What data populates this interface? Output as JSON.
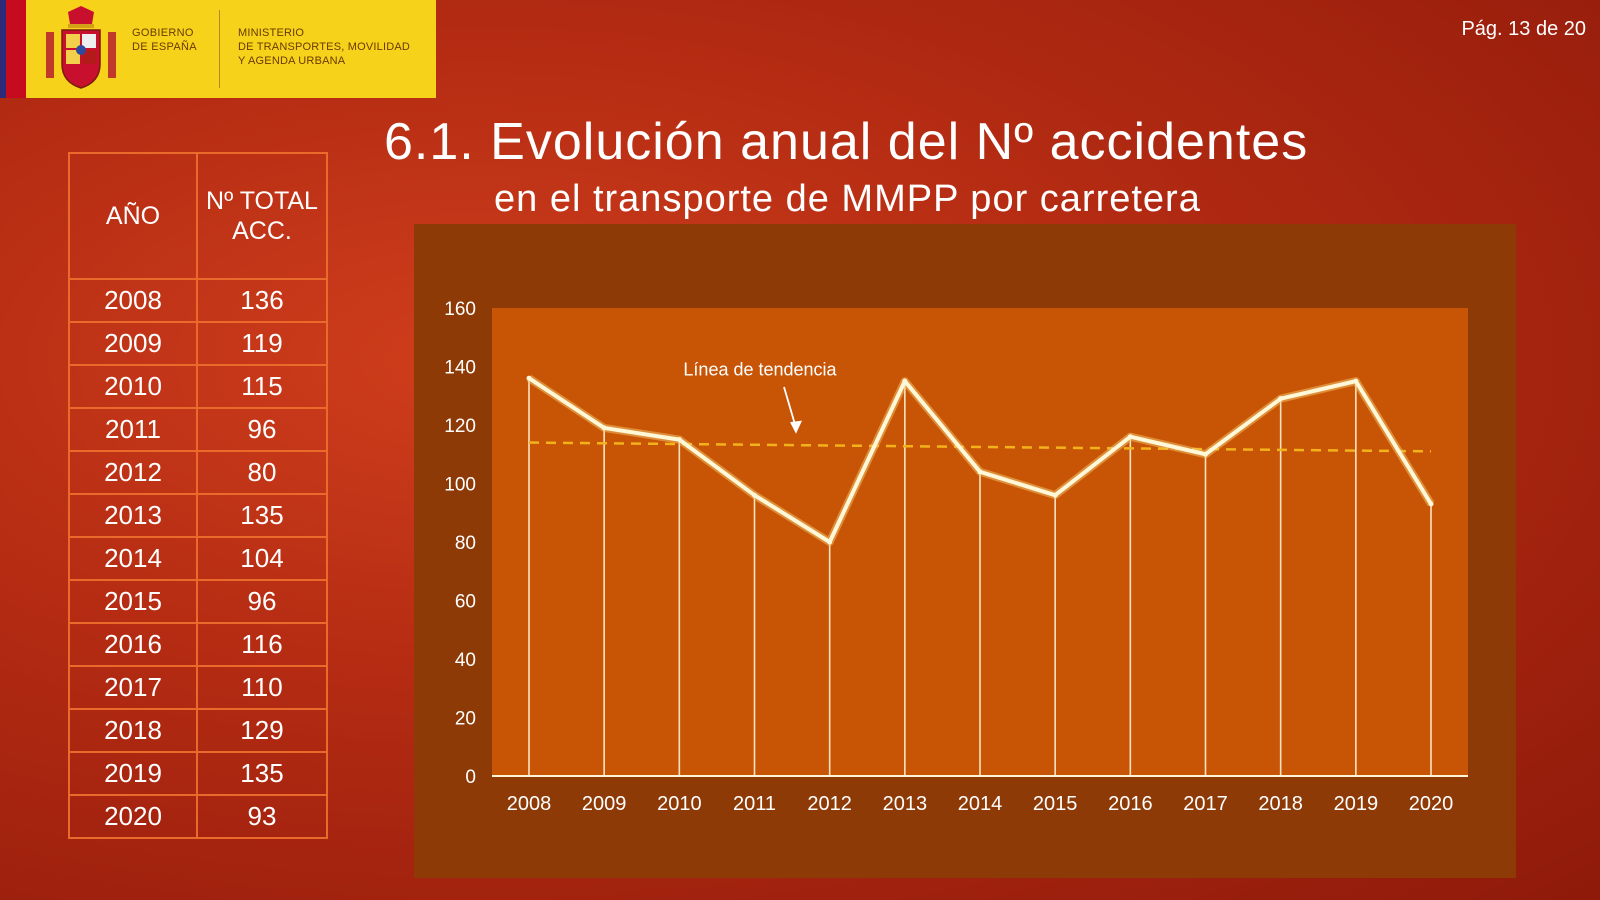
{
  "header": {
    "gov_line1": "GOBIERNO",
    "gov_line2": "DE ESPAÑA",
    "ministry_line1": "MINISTERIO",
    "ministry_line2": "DE TRANSPORTES, MOVILIDAD",
    "ministry_line3": "Y AGENDA URBANA",
    "page": "Pág. 13 de 20"
  },
  "title": "6.1. Evolución anual del Nº accidentes",
  "subtitle": "en el transporte de MMPP por carretera",
  "table": {
    "col1": "AÑO",
    "col2_line1": "Nº TOTAL",
    "col2_line2": "ACC.",
    "rows": [
      {
        "year": "2008",
        "value": "136"
      },
      {
        "year": "2009",
        "value": "119"
      },
      {
        "year": "2010",
        "value": "115"
      },
      {
        "year": "2011",
        "value": "96"
      },
      {
        "year": "2012",
        "value": "80"
      },
      {
        "year": "2013",
        "value": "135"
      },
      {
        "year": "2014",
        "value": "104"
      },
      {
        "year": "2015",
        "value": "96"
      },
      {
        "year": "2016",
        "value": "116"
      },
      {
        "year": "2017",
        "value": "110"
      },
      {
        "year": "2018",
        "value": "129"
      },
      {
        "year": "2019",
        "value": "135"
      },
      {
        "year": "2020",
        "value": "93"
      }
    ]
  },
  "chart_data": {
    "type": "line",
    "categories": [
      "2008",
      "2009",
      "2010",
      "2011",
      "2012",
      "2013",
      "2014",
      "2015",
      "2016",
      "2017",
      "2018",
      "2019",
      "2020"
    ],
    "values": [
      136,
      119,
      115,
      96,
      80,
      135,
      104,
      96,
      116,
      110,
      129,
      135,
      93
    ],
    "trend": {
      "label": "Línea de tendencia",
      "start": 114,
      "end": 111
    },
    "ylim": [
      0,
      160
    ],
    "yticks": [
      0,
      20,
      40,
      60,
      80,
      100,
      120,
      140,
      160
    ],
    "xlabel": "",
    "ylabel": "",
    "grid": false,
    "colors": {
      "line": "#fff8d8",
      "trend": "#f2b21c",
      "plot_bg": "#c85506",
      "panel_bg": "#8e3a06"
    }
  }
}
